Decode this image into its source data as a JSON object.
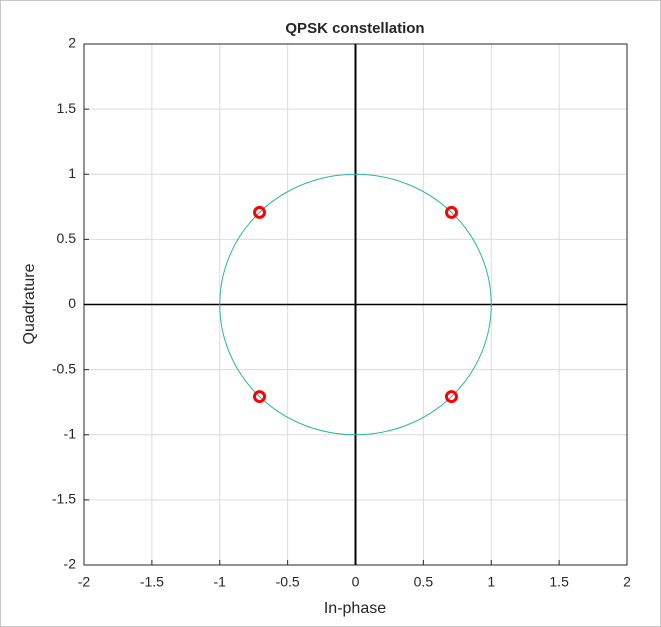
{
  "chart_data": {
    "type": "scatter",
    "title": "QPSK constellation",
    "xlabel": "In-phase",
    "ylabel": "Quadrature",
    "xlim": [
      -2,
      2
    ],
    "ylim": [
      -2,
      2
    ],
    "xticks": [
      -2,
      -1.5,
      -1,
      -0.5,
      0,
      0.5,
      1,
      1.5,
      2
    ],
    "yticks": [
      -2,
      -1.5,
      -1,
      -0.5,
      0,
      0.5,
      1,
      1.5,
      2
    ],
    "grid": true,
    "series": [
      {
        "x": [
          0.707,
          -0.707,
          -0.707,
          0.707
        ],
        "values": [
          0.707,
          0.707,
          -0.707,
          -0.707
        ],
        "color": "#ff0000"
      }
    ],
    "reference_circle": {
      "radius": 1,
      "color": "#2bb5a0"
    }
  }
}
